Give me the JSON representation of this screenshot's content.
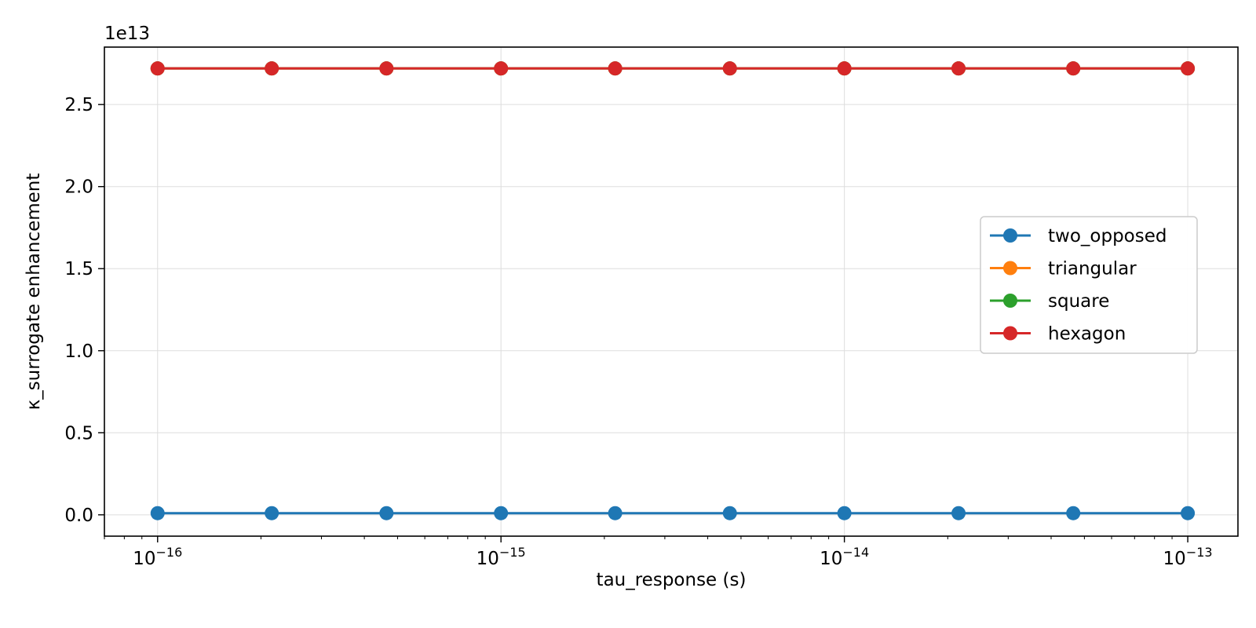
{
  "chart_data": {
    "type": "line",
    "title": "",
    "xlabel": "tau_response (s)",
    "ylabel": "κ_surrogate enhancement",
    "y_offset_label": "1e13",
    "x_scale": "log",
    "xlim": [
      7e-17,
      1.4e-13
    ],
    "ylim": [
      -1300000000000.0,
      28500000000000.0
    ],
    "grid": true,
    "legend_position": "center-right",
    "x_ticks": [
      1e-16,
      1e-15,
      1e-14,
      1e-13
    ],
    "x_tick_labels": [
      {
        "base": "10",
        "exp": "−16"
      },
      {
        "base": "10",
        "exp": "−15"
      },
      {
        "base": "10",
        "exp": "−14"
      },
      {
        "base": "10",
        "exp": "−13"
      }
    ],
    "y_ticks": [
      0,
      5000000000000.0,
      10000000000000.0,
      15000000000000.0,
      20000000000000.0,
      25000000000000.0
    ],
    "y_tick_labels": [
      "0.0",
      "0.5",
      "1.0",
      "1.5",
      "2.0",
      "2.5"
    ],
    "x": [
      1e-16,
      2.15e-16,
      4.64e-16,
      1e-15,
      2.15e-15,
      4.64e-15,
      1e-14,
      2.15e-14,
      4.64e-14,
      1e-13
    ],
    "series": [
      {
        "name": "two_opposed",
        "color": "#1f77b4",
        "values": [
          100000000000.0,
          100000000000.0,
          100000000000.0,
          100000000000.0,
          100000000000.0,
          100000000000.0,
          100000000000.0,
          100000000000.0,
          100000000000.0,
          100000000000.0
        ]
      },
      {
        "name": "triangular",
        "color": "#ff7f0e",
        "values": [
          27200000000000.0,
          27200000000000.0,
          27200000000000.0,
          27200000000000.0,
          27200000000000.0,
          27200000000000.0,
          27200000000000.0,
          27200000000000.0,
          27200000000000.0,
          27200000000000.0
        ]
      },
      {
        "name": "square",
        "color": "#2ca02c",
        "values": [
          27200000000000.0,
          27200000000000.0,
          27200000000000.0,
          27200000000000.0,
          27200000000000.0,
          27200000000000.0,
          27200000000000.0,
          27200000000000.0,
          27200000000000.0,
          27200000000000.0
        ]
      },
      {
        "name": "hexagon",
        "color": "#d62728",
        "values": [
          27200000000000.0,
          27200000000000.0,
          27200000000000.0,
          27200000000000.0,
          27200000000000.0,
          27200000000000.0,
          27200000000000.0,
          27200000000000.0,
          27200000000000.0,
          27200000000000.0
        ]
      }
    ]
  }
}
